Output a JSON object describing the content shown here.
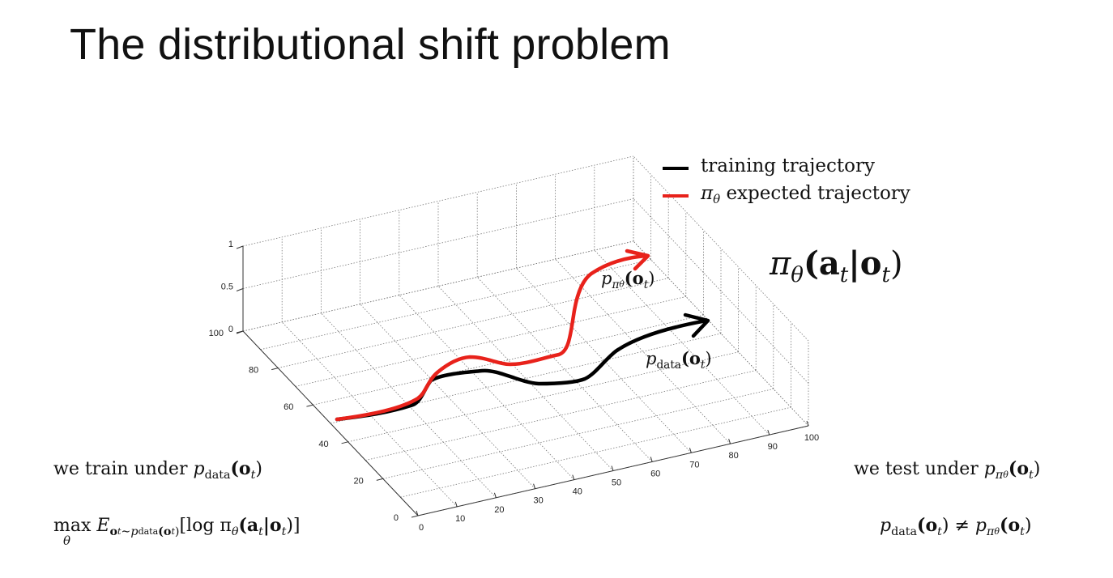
{
  "slide": {
    "title": "The distributional shift problem",
    "policy_label": "π",
    "policy_label_sub": "θ",
    "policy_label_args": "(a",
    "policy_label_t1": "t",
    "policy_label_bar": "|o",
    "policy_label_t2": "t",
    "policy_label_close": ")"
  },
  "legend": {
    "items": [
      {
        "label": "training trajectory",
        "color": "#000000"
      },
      {
        "label": "expected trajectory",
        "prefix": "π",
        "prefix_sub": "θ",
        "color": "#e8221b"
      }
    ]
  },
  "annotations": {
    "p_pi_label": {
      "p": "p",
      "pi": "π",
      "theta": "θ",
      "args": "(o",
      "t": "t",
      "close": ")"
    },
    "p_data_label": {
      "p": "p",
      "data": "data",
      "args": "(o",
      "t": "t",
      "close": ")"
    }
  },
  "bottom_left": {
    "line1_text": "we train under ",
    "line1_p": "p",
    "line1_data": "data",
    "line1_args": "(o",
    "line1_t": "t",
    "line1_close": ")",
    "line2_max": "max",
    "line2_theta": "θ",
    "line2_E": "E",
    "line2_sub": "o",
    "line2_sub_t": "t",
    "line2_sub_rest": "∼p",
    "line2_sub_data": "data",
    "line2_sub_args": "(o",
    "line2_sub_t2": "t",
    "line2_sub_close": ")",
    "line2_body": "[log π",
    "line2_body_theta": "θ",
    "line2_body_args": "(a",
    "line2_body_t1": "t",
    "line2_body_bar": "|o",
    "line2_body_t2": "t",
    "line2_body_close": ")]"
  },
  "bottom_right": {
    "line1_text": "we test under ",
    "line1_p": "p",
    "line1_pi": "π",
    "line1_theta": "θ",
    "line1_args": "(o",
    "line1_t": "t",
    "line1_close": ")",
    "line2_p": "p",
    "line2_data": "data",
    "line2_args": "(o",
    "line2_t": "t",
    "line2_close": ")",
    "line2_neq": "≠",
    "line2_p2": "p",
    "line2_pi": "π",
    "line2_theta": "θ",
    "line2_args2": "(o",
    "line2_t2": "t",
    "line2_close2": ")"
  },
  "chart_data": {
    "type": "line",
    "title": "",
    "axes": {
      "x": {
        "range": [
          0,
          100
        ],
        "ticks": [
          "0",
          "10",
          "20",
          "30",
          "40",
          "50",
          "60",
          "70",
          "80",
          "90",
          "100"
        ]
      },
      "y": {
        "range": [
          0,
          100
        ],
        "ticks": [
          "0",
          "20",
          "40",
          "60",
          "80",
          "100"
        ]
      },
      "z": {
        "range": [
          0,
          1
        ],
        "ticks": [
          "0",
          "0.5",
          "1"
        ]
      }
    },
    "grid": true,
    "legend_placement": "top-right",
    "series": [
      {
        "name": "training trajectory",
        "color": "#000000"
      },
      {
        "name": "expected trajectory",
        "color": "#e8221b"
      }
    ]
  }
}
